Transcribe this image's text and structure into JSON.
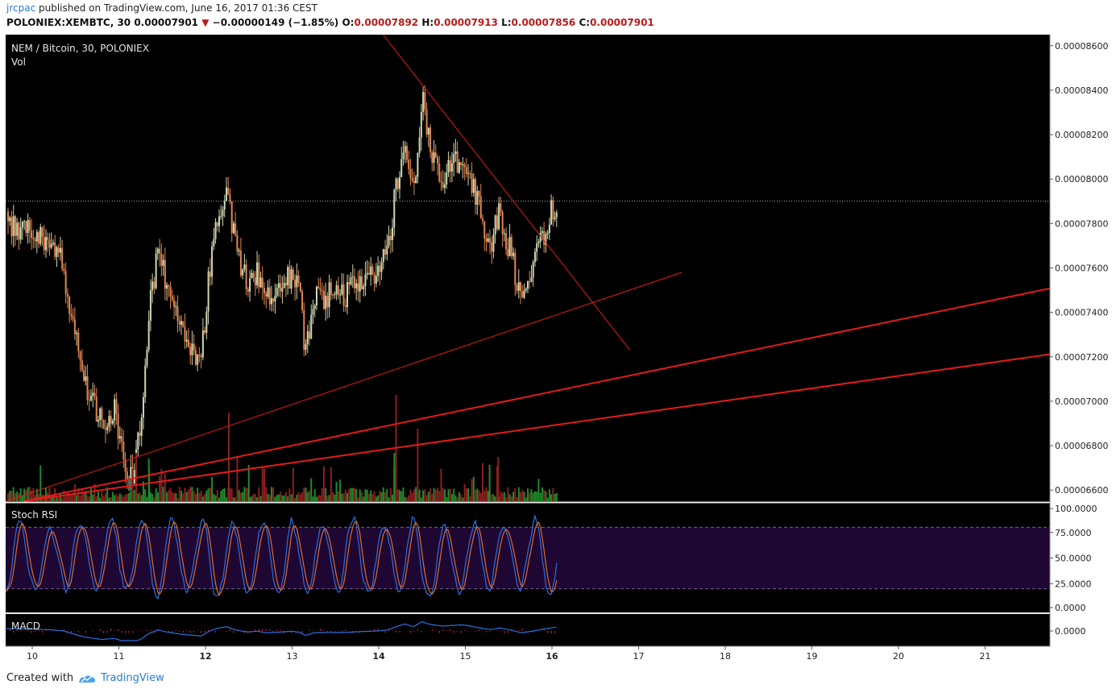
{
  "header": {
    "user": "jrcpac",
    "published": "published on TradingView.com, June 16, 2017 01:36 CEST"
  },
  "ticker": {
    "symbol": "POLONIEX:XEMBTC, 30",
    "price": "0.00007901",
    "change_arrow": "▼",
    "change": "−0.00000149 (−1.85%)",
    "o_label": "O:",
    "o": "0.00007892",
    "h_label": "H:",
    "h": "0.00007913",
    "l_label": "L:",
    "l": "0.00007856",
    "c_label": "C:",
    "c": "0.00007901"
  },
  "footer": {
    "created_with": "Created with",
    "brand": "TradingView"
  },
  "colors": {
    "background": "#000000",
    "up_candle": "#c9d9b3",
    "down_candle": "#e3854e",
    "trendline": "#e31b1b",
    "rsi_band": "#1e0833",
    "k_line": "#2d6fe0",
    "d_line": "#e06a2d",
    "vol_up": "#1f8a2a",
    "vol_down": "#8a1f1f",
    "text": "#e6e6e6"
  },
  "chart_data": {
    "type": "candlestick",
    "title": "NEM / Bitcoin, 30, POLONIEX",
    "volume_label": "Vol",
    "last_price": 7.901e-05,
    "ylim": [
      6.55e-05,
      8.65e-05
    ],
    "y_ticks": [
      "0.00008600",
      "0.00008400",
      "0.00008200",
      "0.00008000",
      "0.00007800",
      "0.00007600",
      "0.00007400",
      "0.00007200",
      "0.00007000",
      "0.00006800",
      "0.00006600"
    ],
    "x_ticks": [
      "10",
      "11",
      "12",
      "13",
      "14",
      "15",
      "16",
      "17",
      "18",
      "19",
      "20",
      "21"
    ],
    "bold_x_ticks": [
      "12",
      "14",
      "16"
    ],
    "close_path_days": [
      9.7,
      9.85,
      10.0,
      10.2,
      10.35,
      10.5,
      10.6,
      10.7,
      10.8,
      10.95,
      11.05,
      11.15,
      11.25,
      11.35,
      11.45,
      11.55,
      11.65,
      11.75,
      11.85,
      11.95,
      12.05,
      12.15,
      12.25,
      12.32,
      12.4,
      12.5,
      12.6,
      12.7,
      12.85,
      13.0,
      13.1,
      13.15,
      13.25,
      13.4,
      13.6,
      13.8,
      14.0,
      14.1,
      14.2,
      14.3,
      14.4,
      14.45,
      14.5,
      14.55,
      14.65,
      14.75,
      14.85,
      14.95,
      15.0,
      15.1,
      15.2,
      15.3,
      15.4,
      15.5,
      15.55,
      15.65,
      15.72,
      15.8,
      15.9,
      16.0,
      16.05
    ],
    "close_path_prices": [
      7.8e-05,
      7.77e-05,
      7.75e-05,
      7.7e-05,
      7.62e-05,
      7.3e-05,
      7.1e-05,
      7e-05,
      6.9e-05,
      6.98e-05,
      6.75e-05,
      6.65e-05,
      6.9e-05,
      7.4e-05,
      7.68e-05,
      7.52e-05,
      7.4e-05,
      7.3e-05,
      7.25e-05,
      7.18e-05,
      7.6e-05,
      7.85e-05,
      7.95e-05,
      7.75e-05,
      7.6e-05,
      7.52e-05,
      7.58e-05,
      7.45e-05,
      7.5e-05,
      7.58e-05,
      7.45e-05,
      7.22e-05,
      7.45e-05,
      7.48e-05,
      7.47e-05,
      7.55e-05,
      7.6e-05,
      7.68e-05,
      7.95e-05,
      8.18e-05,
      7.95e-05,
      8.15e-05,
      8.38e-05,
      8.22e-05,
      8.08e-05,
      8e-05,
      8.06e-05,
      8.1e-05,
      8.08e-05,
      7.95e-05,
      7.8e-05,
      7.72e-05,
      7.85e-05,
      7.7e-05,
      7.62e-05,
      7.45e-05,
      7.52e-05,
      7.62e-05,
      7.75e-05,
      7.86e-05,
      7.9e-05
    ],
    "trendlines": [
      {
        "x1": 14.05,
        "y1": 8.65e-05,
        "x2": 16.9,
        "y2": 7.23e-05,
        "width": 1
      },
      {
        "x1": 9.7,
        "y1": 6.55e-05,
        "x2": 17.5,
        "y2": 7.58e-05,
        "width": 1
      },
      {
        "x1": 9.9,
        "y1": 6.55e-05,
        "x2": 21.9,
        "y2": 7.52e-05,
        "width": 2
      },
      {
        "x1": 9.9,
        "y1": 6.55e-05,
        "x2": 21.9,
        "y2": 7.22e-05,
        "width": 2
      }
    ],
    "stoch_rsi": {
      "title": "Stoch RSI",
      "ylim": [
        0,
        100
      ],
      "y_ticks": [
        "100.0000",
        "75.0000",
        "50.0000",
        "25.0000",
        "0.0000"
      ],
      "band": [
        20,
        80
      ],
      "series": [
        {
          "values": []
        },
        {
          "values": []
        }
      ]
    },
    "macd": {
      "title": "MACD",
      "y_ticks": [
        "0.0000"
      ]
    }
  }
}
